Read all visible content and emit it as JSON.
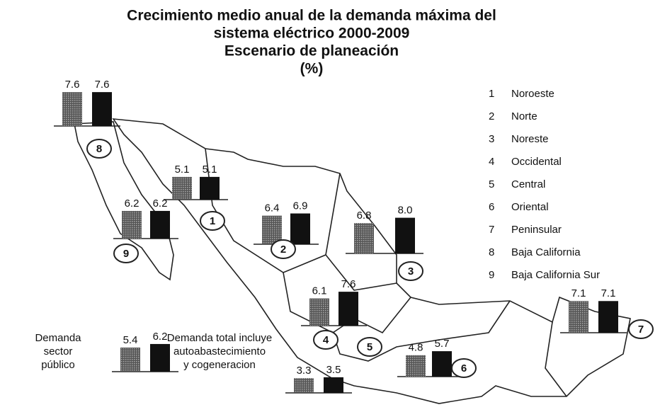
{
  "title": [
    "Crecimiento medio anual de la demanda máxima del",
    "sistema eléctrico 2000-2009",
    "Escenario de planeación",
    "(%)"
  ],
  "regions": [
    {
      "number": 1,
      "name": "Noroeste",
      "values": [
        5.1,
        5.1
      ]
    },
    {
      "number": 2,
      "name": "Norte",
      "values": [
        6.4,
        6.9
      ]
    },
    {
      "number": 3,
      "name": "Noreste",
      "values": [
        6.8,
        8.0
      ],
      "value_labels": [
        "6.8",
        "8.0"
      ]
    },
    {
      "number": 4,
      "name": "Occidental",
      "values": [
        6.1,
        7.6
      ]
    },
    {
      "number": 5,
      "name": "Central",
      "values": [
        3.3,
        3.5
      ]
    },
    {
      "number": 6,
      "name": "Oriental",
      "values": [
        4.8,
        5.7
      ]
    },
    {
      "number": 7,
      "name": "Peninsular",
      "values": [
        7.1,
        7.1
      ]
    },
    {
      "number": 8,
      "name": "Baja California",
      "values": [
        7.6,
        7.6
      ]
    },
    {
      "number": 9,
      "name": "Baja California Sur",
      "values": [
        6.2,
        6.2
      ]
    }
  ],
  "key": {
    "public": [
      "Demanda",
      "sector",
      "público"
    ],
    "total": [
      "Demanda total incluye",
      "autoabastecimiento",
      "y cogeneracion"
    ],
    "values": [
      5.4,
      6.2
    ]
  }
}
